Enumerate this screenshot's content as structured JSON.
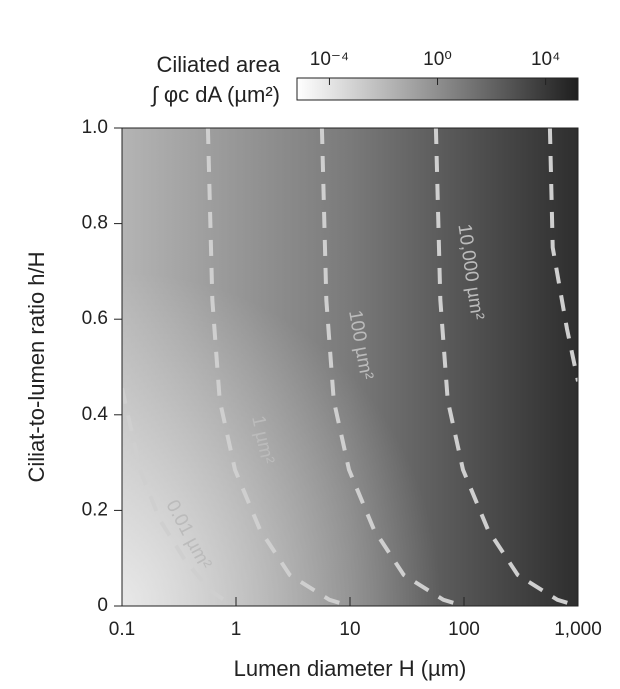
{
  "chart_data": {
    "type": "contour",
    "xlabel": "Lumen diameter H (µm)",
    "ylabel": "Ciliat-to-lumen ratio h/H",
    "colorbar_title": "Ciliated area",
    "colorbar_label": "∫ φc dA (µm²)",
    "xscale": "log",
    "xlim": [
      0.1,
      1000
    ],
    "xticks": [
      0.1,
      1,
      10,
      100,
      {
        "value": 1000,
        "label": "1,000"
      }
    ],
    "ylim": [
      0,
      1
    ],
    "yticks": [
      0,
      0.2,
      0.4,
      0.6,
      0.8,
      {
        "value": 1,
        "label": "1.0"
      }
    ],
    "clim": [
      6.3e-06,
      158000
    ],
    "cticks": [
      {
        "value": 0.0001,
        "label": "10⁻⁴"
      },
      {
        "value": 1,
        "label": "10⁰"
      },
      {
        "value": 10000,
        "label": "10⁴"
      }
    ],
    "contour_color": "#cfcfcf",
    "contours": [
      {
        "level": 0.01,
        "label": "0.01 µm²",
        "x": [
          0.1,
          0.144,
          0.215,
          0.357,
          0.59,
          0.89,
          1
        ],
        "y": [
          0.456,
          0.285,
          0.18,
          0.096,
          0.033,
          0.004,
          0
        ]
      },
      {
        "level": 1,
        "label": "1 µm²",
        "x": [
          0.567,
          0.62,
          0.72,
          0.98,
          1.62,
          2.96,
          6.6,
          10
        ],
        "y": [
          1,
          0.64,
          0.43,
          0.285,
          0.16,
          0.065,
          0.013,
          0
        ]
      },
      {
        "level": 100,
        "label": "100 µm²",
        "x": [
          5.67,
          6.2,
          7.2,
          9.8,
          16.2,
          29.6,
          66,
          100
        ],
        "y": [
          1,
          0.64,
          0.43,
          0.285,
          0.16,
          0.065,
          0.013,
          0
        ]
      },
      {
        "level": 10000,
        "label": "10,000 µm²",
        "x": [
          56.7,
          62,
          72,
          98,
          162,
          296,
          660,
          1000
        ],
        "y": [
          1,
          0.64,
          0.43,
          0.285,
          0.16,
          0.065,
          0.013,
          0
        ]
      },
      {
        "level": 1000000,
        "x": [
          567,
          600,
          800,
          1000
        ],
        "y": [
          1,
          0.75,
          0.58,
          0.47
        ]
      }
    ]
  }
}
